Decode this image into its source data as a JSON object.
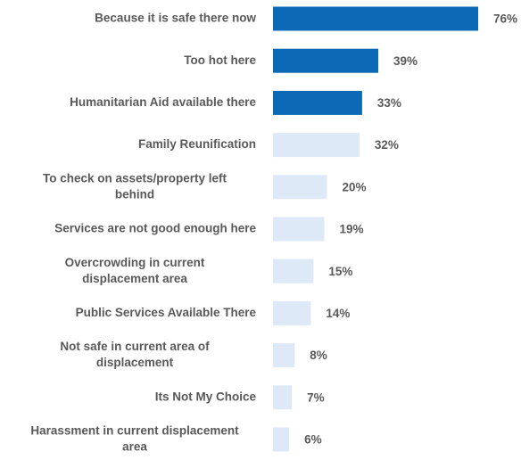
{
  "chart_data": {
    "type": "bar",
    "orientation": "horizontal",
    "categories": [
      [
        "Because it is safe there now"
      ],
      [
        "Too hot here"
      ],
      [
        "Humanitarian Aid available there"
      ],
      [
        "Family Reunification"
      ],
      [
        "To check on assets/property left",
        "behind"
      ],
      [
        "Services are not good enough here"
      ],
      [
        "Overcrowding in current",
        "displacement area"
      ],
      [
        "Public Services Available There"
      ],
      [
        "Not safe in current area of",
        "displacement"
      ],
      [
        "Its Not My Choice"
      ],
      [
        "Harassment in current displacement",
        "area"
      ]
    ],
    "values": [
      76,
      39,
      33,
      32,
      20,
      19,
      15,
      14,
      8,
      7,
      6
    ],
    "value_labels": [
      "76%",
      "39%",
      "33%",
      "32%",
      "20%",
      "19%",
      "15%",
      "14%",
      "8%",
      "7%",
      "6%"
    ],
    "value_unit": "%",
    "highlighted": [
      true,
      true,
      true,
      false,
      false,
      false,
      false,
      false,
      false,
      false,
      false
    ],
    "colors": {
      "highlight": "#0a68b4",
      "normal": "#dde9f6",
      "label": "#595959"
    },
    "xlim": [
      0,
      100
    ],
    "grid": false,
    "legend": "none"
  }
}
